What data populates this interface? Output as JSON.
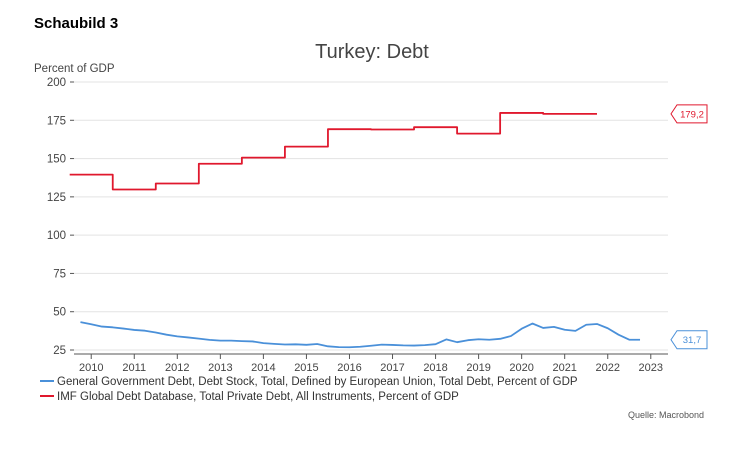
{
  "page": {
    "figure_label": "Schaubild 3",
    "source": "Quelle: Macrobond"
  },
  "colors": {
    "government_debt": "#4a90d9",
    "private_debt": "#e0182d",
    "grid": "#e3e3e3",
    "axis": "#555555"
  },
  "chart_data": {
    "type": "line",
    "title": "Turkey: Debt",
    "ylabel": "Percent of GDP",
    "xlabel": "",
    "ylim": [
      25,
      200
    ],
    "yticks": [
      25,
      50,
      75,
      100,
      125,
      150,
      175,
      200
    ],
    "xlim": [
      2009.6,
      2023.4
    ],
    "xticks": [
      "2010",
      "2011",
      "2012",
      "2013",
      "2014",
      "2015",
      "2016",
      "2017",
      "2018",
      "2019",
      "2020",
      "2021",
      "2022",
      "2023"
    ],
    "grid": true,
    "legend_position": "bottom-left",
    "end_labels": [
      {
        "series": 0,
        "text": "31,7"
      },
      {
        "series": 1,
        "text": "179,2"
      }
    ],
    "series": [
      {
        "name": "General Government Debt, Debt Stock, Total, Defined by European Union, Total Debt, Percent of GDP",
        "color": "#4a90d9",
        "step": false,
        "x": [
          2009.75,
          2010.0,
          2010.25,
          2010.5,
          2010.75,
          2011.0,
          2011.25,
          2011.5,
          2011.75,
          2012.0,
          2012.25,
          2012.5,
          2012.75,
          2013.0,
          2013.25,
          2013.5,
          2013.75,
          2014.0,
          2014.25,
          2014.5,
          2014.75,
          2015.0,
          2015.25,
          2015.5,
          2015.75,
          2016.0,
          2016.25,
          2016.5,
          2016.75,
          2017.0,
          2017.25,
          2017.5,
          2017.75,
          2018.0,
          2018.25,
          2018.5,
          2018.75,
          2019.0,
          2019.25,
          2019.5,
          2019.75,
          2020.0,
          2020.25,
          2020.5,
          2020.75,
          2021.0,
          2021.25,
          2021.5,
          2021.75,
          2022.0,
          2022.25,
          2022.5,
          2022.75
        ],
        "values": [
          43.2,
          41.8,
          40.3,
          39.8,
          39.0,
          38.1,
          37.6,
          36.4,
          35.0,
          33.9,
          33.2,
          32.4,
          31.6,
          31.1,
          31.1,
          30.8,
          30.6,
          29.5,
          29.0,
          28.6,
          28.7,
          28.4,
          28.9,
          27.4,
          26.9,
          26.8,
          27.1,
          27.8,
          28.5,
          28.3,
          28.0,
          27.9,
          28.2,
          28.8,
          31.9,
          30.1,
          31.4,
          32.0,
          31.7,
          32.3,
          34.1,
          38.9,
          42.3,
          39.4,
          40.1,
          38.2,
          37.5,
          41.5,
          42.0,
          39.2,
          35.0,
          31.7,
          31.7
        ]
      },
      {
        "name": "IMF Global Debt Database, Total Private Debt, All Instruments, Percent of GDP",
        "color": "#e0182d",
        "step": true,
        "x": [
          2009.5,
          2010.5,
          2011.5,
          2012.5,
          2013.5,
          2014.5,
          2015.5,
          2016.5,
          2017.5,
          2018.5,
          2019.5,
          2020.5,
          2021.5
        ],
        "values": [
          139.5,
          129.8,
          133.7,
          146.6,
          150.6,
          157.8,
          169.2,
          169.0,
          170.5,
          166.3,
          179.8,
          179.2,
          179.2
        ]
      }
    ]
  }
}
